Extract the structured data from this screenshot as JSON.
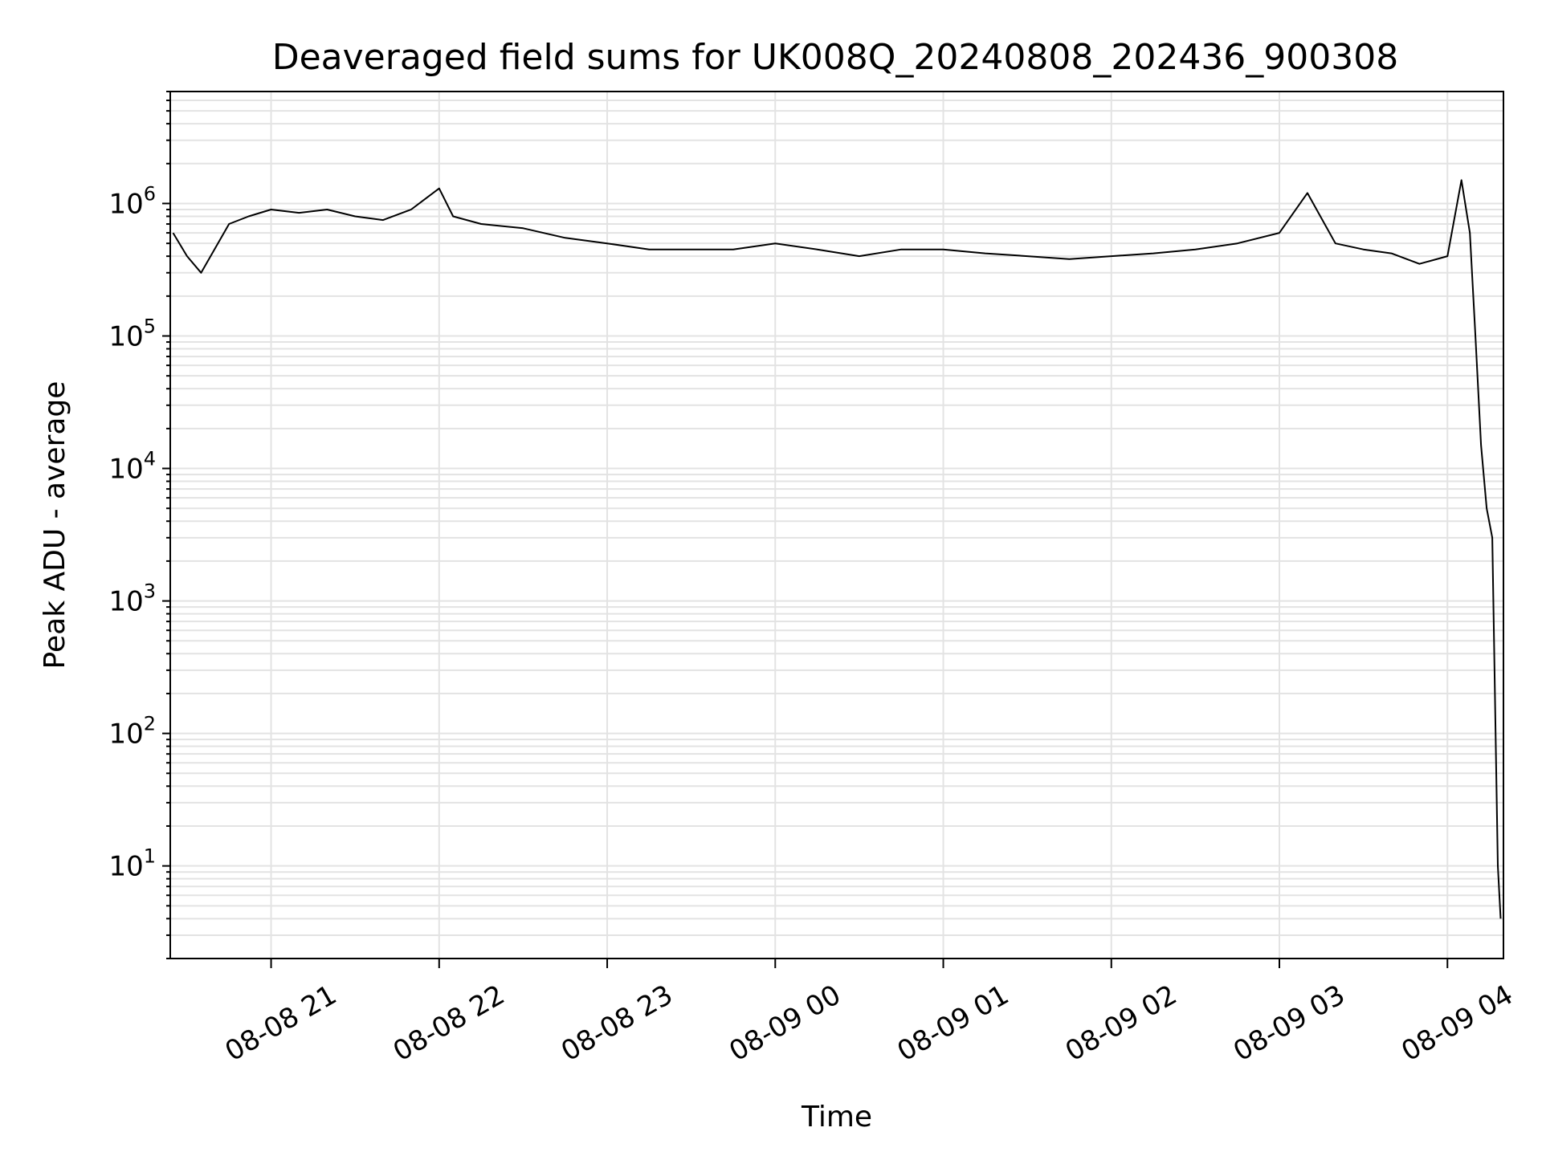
{
  "chart_data": {
    "type": "line",
    "title": "Deaveraged field sums for UK008Q_20240808_202436_900308",
    "xlabel": "Time",
    "ylabel": "Peak ADU - average",
    "y_scale": "log",
    "ylim": [
      2,
      7000000
    ],
    "xlim": [
      "2024-08-08 20:24",
      "2024-08-09 04:20"
    ],
    "x_ticks": [
      "08-08 21",
      "08-08 22",
      "08-08 23",
      "08-09 00",
      "08-09 01",
      "08-09 02",
      "08-09 03",
      "08-09 04"
    ],
    "x_tick_times": [
      "2024-08-08 21:00",
      "2024-08-08 22:00",
      "2024-08-08 23:00",
      "2024-08-09 00:00",
      "2024-08-09 01:00",
      "2024-08-09 02:00",
      "2024-08-09 03:00",
      "2024-08-09 04:00"
    ],
    "y_ticks": [
      {
        "base": "10",
        "exp": "1",
        "value": 10
      },
      {
        "base": "10",
        "exp": "2",
        "value": 100
      },
      {
        "base": "10",
        "exp": "3",
        "value": 1000
      },
      {
        "base": "10",
        "exp": "4",
        "value": 10000
      },
      {
        "base": "10",
        "exp": "5",
        "value": 100000
      },
      {
        "base": "10",
        "exp": "6",
        "value": 1000000
      }
    ],
    "grid": true,
    "line_color": "#000000",
    "grid_color": "#e3e3e3",
    "series": [
      {
        "x": [
          "2024-08-08 20:25",
          "2024-08-08 20:30",
          "2024-08-08 20:35",
          "2024-08-08 20:45",
          "2024-08-08 20:52",
          "2024-08-08 21:00",
          "2024-08-08 21:10",
          "2024-08-08 21:20",
          "2024-08-08 21:30",
          "2024-08-08 21:40",
          "2024-08-08 21:50",
          "2024-08-08 22:00",
          "2024-08-08 22:05",
          "2024-08-08 22:15",
          "2024-08-08 22:30",
          "2024-08-08 22:45",
          "2024-08-08 23:00",
          "2024-08-08 23:15",
          "2024-08-08 23:30",
          "2024-08-08 23:45",
          "2024-08-09 00:00",
          "2024-08-09 00:15",
          "2024-08-09 00:30",
          "2024-08-09 00:45",
          "2024-08-09 01:00",
          "2024-08-09 01:15",
          "2024-08-09 01:30",
          "2024-08-09 01:45",
          "2024-08-09 02:00",
          "2024-08-09 02:15",
          "2024-08-09 02:30",
          "2024-08-09 02:45",
          "2024-08-09 03:00",
          "2024-08-09 03:10",
          "2024-08-09 03:20",
          "2024-08-09 03:30",
          "2024-08-09 03:40",
          "2024-08-09 03:50",
          "2024-08-09 04:00",
          "2024-08-09 04:05",
          "2024-08-09 04:08",
          "2024-08-09 04:10",
          "2024-08-09 04:12",
          "2024-08-09 04:14",
          "2024-08-09 04:16",
          "2024-08-09 04:18",
          "2024-08-09 04:19"
        ],
        "y": [
          600000,
          400000,
          300000,
          700000,
          800000,
          900000,
          850000,
          900000,
          800000,
          750000,
          900000,
          1300000,
          800000,
          700000,
          650000,
          550000,
          500000,
          450000,
          450000,
          450000,
          500000,
          450000,
          400000,
          450000,
          450000,
          420000,
          400000,
          380000,
          400000,
          420000,
          450000,
          500000,
          600000,
          1200000,
          500000,
          450000,
          420000,
          350000,
          400000,
          1500000,
          600000,
          100000,
          15000,
          5000,
          3000,
          10,
          4
        ]
      }
    ]
  }
}
